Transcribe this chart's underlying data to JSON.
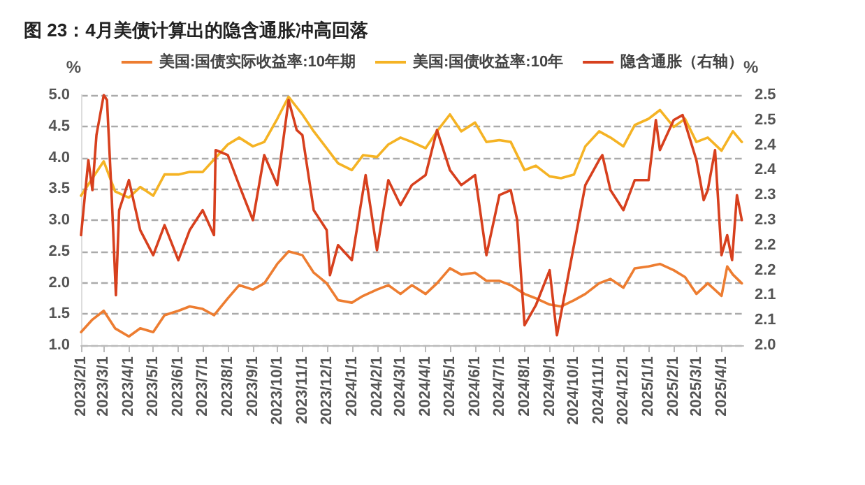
{
  "chart_data": {
    "type": "line",
    "title": "图 23：4月美债计算出的隐含通胀冲高回落",
    "ylabel": "%",
    "y2label": "%",
    "xlim": [
      "2023-02-01",
      "2025-04-28"
    ],
    "xticks": [
      {
        "value": "2023-02-01",
        "label": "2023/2/1"
      },
      {
        "value": "2023-03-01",
        "label": "2023/3/1"
      },
      {
        "value": "2023-04-01",
        "label": "2023/4/1"
      },
      {
        "value": "2023-05-01",
        "label": "2023/5/1"
      },
      {
        "value": "2023-06-01",
        "label": "2023/6/1"
      },
      {
        "value": "2023-07-01",
        "label": "2023/7/1"
      },
      {
        "value": "2023-08-01",
        "label": "2023/8/1"
      },
      {
        "value": "2023-09-01",
        "label": "2023/9/1"
      },
      {
        "value": "2023-10-01",
        "label": "2023/10/1"
      },
      {
        "value": "2023-11-01",
        "label": "2023/11/1"
      },
      {
        "value": "2023-12-01",
        "label": "2023/12/1"
      },
      {
        "value": "2024-01-01",
        "label": "2024/1/1"
      },
      {
        "value": "2024-02-01",
        "label": "2024/2/1"
      },
      {
        "value": "2024-03-01",
        "label": "2024/3/1"
      },
      {
        "value": "2024-04-01",
        "label": "2024/4/1"
      },
      {
        "value": "2024-05-01",
        "label": "2024/5/1"
      },
      {
        "value": "2024-06-01",
        "label": "2024/6/1"
      },
      {
        "value": "2024-07-01",
        "label": "2024/7/1"
      },
      {
        "value": "2024-08-01",
        "label": "2024/8/1"
      },
      {
        "value": "2024-09-01",
        "label": "2024/9/1"
      },
      {
        "value": "2024-10-01",
        "label": "2024/10/1"
      },
      {
        "value": "2024-11-01",
        "label": "2024/11/1"
      },
      {
        "value": "2024-12-01",
        "label": "2024/12/1"
      },
      {
        "value": "2025-01-01",
        "label": "2025/1/1"
      },
      {
        "value": "2025-02-01",
        "label": "2025/2/1"
      },
      {
        "value": "2025-03-01",
        "label": "2025/3/1"
      },
      {
        "value": "2025-04-01",
        "label": "2025/4/1"
      }
    ],
    "ylim": [
      1,
      5
    ],
    "yticks": [
      {
        "value": 1,
        "label": "1.0"
      },
      {
        "value": 1.5,
        "label": "1.5"
      },
      {
        "value": 2,
        "label": "2.0"
      },
      {
        "value": 2.5,
        "label": "2.5"
      },
      {
        "value": 3,
        "label": "3.0"
      },
      {
        "value": 3.5,
        "label": "3.5"
      },
      {
        "value": 4,
        "label": "4.0"
      },
      {
        "value": 4.5,
        "label": "4.5"
      },
      {
        "value": 5,
        "label": "5.0"
      }
    ],
    "y2lim": [
      2,
      2.5
    ],
    "y2ticks": [
      {
        "value": 2,
        "label": "2.0"
      },
      {
        "value": 2.05,
        "label": "2.1"
      },
      {
        "value": 2.1,
        "label": "2.1"
      },
      {
        "value": 2.15,
        "label": "2.2"
      },
      {
        "value": 2.2,
        "label": "2.2"
      },
      {
        "value": 2.25,
        "label": "2.3"
      },
      {
        "value": 2.3,
        "label": "2.3"
      },
      {
        "value": 2.35,
        "label": "2.4"
      },
      {
        "value": 2.4,
        "label": "2.4"
      },
      {
        "value": 2.45,
        "label": "2.5"
      },
      {
        "value": 2.5,
        "label": "2.5"
      }
    ],
    "grid": "y",
    "legend": "top",
    "marker": "none",
    "line_style": "solid",
    "series": [
      {
        "name": "美国:国债实际收益率:10年期",
        "color": "#ed7d31",
        "x": [
          "2023-02-01",
          "2023-02-15",
          "2023-03-01",
          "2023-03-15",
          "2023-04-01",
          "2023-04-15",
          "2023-05-01",
          "2023-05-15",
          "2023-06-01",
          "2023-06-15",
          "2023-07-01",
          "2023-07-15",
          "2023-08-01",
          "2023-08-15",
          "2023-09-01",
          "2023-09-15",
          "2023-10-01",
          "2023-10-15",
          "2023-11-01",
          "2023-11-15",
          "2023-12-01",
          "2023-12-15",
          "2024-01-01",
          "2024-01-15",
          "2024-02-01",
          "2024-02-15",
          "2024-03-01",
          "2024-03-15",
          "2024-04-01",
          "2024-04-15",
          "2024-05-01",
          "2024-05-15",
          "2024-06-01",
          "2024-06-15",
          "2024-07-01",
          "2024-07-15",
          "2024-08-01",
          "2024-08-15",
          "2024-09-01",
          "2024-09-15",
          "2024-10-01",
          "2024-10-15",
          "2024-11-01",
          "2024-11-15",
          "2024-12-01",
          "2024-12-15",
          "2025-01-01",
          "2025-01-15",
          "2025-02-01",
          "2025-02-15",
          "2025-03-01",
          "2025-03-15",
          "2025-04-01",
          "2025-04-08",
          "2025-04-15",
          "2025-04-26"
        ],
        "values": [
          1.21,
          1.41,
          1.55,
          1.27,
          1.14,
          1.27,
          1.21,
          1.48,
          1.55,
          1.62,
          1.58,
          1.48,
          1.75,
          1.96,
          1.89,
          1.99,
          2.3,
          2.5,
          2.44,
          2.16,
          1.99,
          1.72,
          1.68,
          1.79,
          1.89,
          1.96,
          1.82,
          1.96,
          1.82,
          1.99,
          2.23,
          2.13,
          2.16,
          2.03,
          2.03,
          1.96,
          1.82,
          1.75,
          1.65,
          1.62,
          1.72,
          1.82,
          1.99,
          2.06,
          1.92,
          2.23,
          2.26,
          2.3,
          2.2,
          2.09,
          1.82,
          1.99,
          1.79,
          2.26,
          2.13,
          1.99
        ]
      },
      {
        "name": "美国:国债收益率:10年",
        "color": "#f5b324",
        "x": [
          "2023-02-01",
          "2023-02-15",
          "2023-03-01",
          "2023-03-15",
          "2023-04-01",
          "2023-04-15",
          "2023-05-01",
          "2023-05-15",
          "2023-06-01",
          "2023-06-15",
          "2023-07-01",
          "2023-07-15",
          "2023-08-01",
          "2023-08-15",
          "2023-09-01",
          "2023-09-15",
          "2023-10-01",
          "2023-10-15",
          "2023-11-01",
          "2023-11-15",
          "2023-12-01",
          "2023-12-15",
          "2024-01-01",
          "2024-01-15",
          "2024-02-01",
          "2024-02-15",
          "2024-03-01",
          "2024-03-15",
          "2024-04-01",
          "2024-04-15",
          "2024-05-01",
          "2024-05-15",
          "2024-06-01",
          "2024-06-15",
          "2024-07-01",
          "2024-07-15",
          "2024-08-01",
          "2024-08-15",
          "2024-09-01",
          "2024-09-15",
          "2024-10-01",
          "2024-10-15",
          "2024-11-01",
          "2024-11-15",
          "2024-12-01",
          "2024-12-15",
          "2025-01-01",
          "2025-01-15",
          "2025-02-01",
          "2025-02-15",
          "2025-03-01",
          "2025-03-15",
          "2025-04-01",
          "2025-04-15",
          "2025-04-26"
        ],
        "values": [
          3.39,
          3.67,
          3.94,
          3.46,
          3.36,
          3.53,
          3.39,
          3.73,
          3.73,
          3.77,
          3.77,
          3.97,
          4.21,
          4.32,
          4.18,
          4.25,
          4.62,
          4.97,
          4.69,
          4.42,
          4.15,
          3.91,
          3.8,
          4.04,
          4.01,
          4.21,
          4.32,
          4.25,
          4.15,
          4.42,
          4.69,
          4.42,
          4.56,
          4.25,
          4.28,
          4.25,
          3.8,
          3.87,
          3.7,
          3.67,
          3.73,
          4.18,
          4.42,
          4.32,
          4.18,
          4.52,
          4.62,
          4.76,
          4.49,
          4.62,
          4.25,
          4.32,
          4.11,
          4.42,
          4.25
        ]
      },
      {
        "name": "隐含通胀（右轴）",
        "color": "#d7401e",
        "axis": "y2",
        "x": [
          "2023-02-01",
          "2023-02-10",
          "2023-02-15",
          "2023-02-20",
          "2023-03-01",
          "2023-03-05",
          "2023-03-11",
          "2023-03-16",
          "2023-03-20",
          "2023-04-01",
          "2023-04-15",
          "2023-05-01",
          "2023-05-08",
          "2023-05-15",
          "2023-06-01",
          "2023-06-15",
          "2023-07-01",
          "2023-07-15",
          "2023-07-17",
          "2023-08-01",
          "2023-08-15",
          "2023-09-01",
          "2023-09-15",
          "2023-10-01",
          "2023-10-15",
          "2023-10-25",
          "2023-11-01",
          "2023-11-15",
          "2023-12-01",
          "2023-12-05",
          "2023-12-15",
          "2024-01-01",
          "2024-01-18",
          "2024-02-01",
          "2024-02-15",
          "2024-03-01",
          "2024-03-15",
          "2024-04-01",
          "2024-04-15",
          "2024-05-01",
          "2024-05-15",
          "2024-06-01",
          "2024-06-15",
          "2024-07-01",
          "2024-07-15",
          "2024-07-23",
          "2024-08-01",
          "2024-08-15",
          "2024-09-01",
          "2024-09-10",
          "2024-10-01",
          "2024-10-15",
          "2024-11-01",
          "2024-11-05",
          "2024-11-15",
          "2024-12-01",
          "2024-12-15",
          "2025-01-01",
          "2025-01-10",
          "2025-01-15",
          "2025-02-01",
          "2025-02-12",
          "2025-03-01",
          "2025-03-10",
          "2025-03-15",
          "2025-03-24",
          "2025-04-01",
          "2025-04-08",
          "2025-04-14",
          "2025-04-20",
          "2025-04-26"
        ],
        "values": [
          2.22,
          2.37,
          2.31,
          2.42,
          2.5,
          2.49,
          2.29,
          2.1,
          2.27,
          2.33,
          2.23,
          2.18,
          2.21,
          2.24,
          2.17,
          2.23,
          2.27,
          2.22,
          2.39,
          2.38,
          2.32,
          2.25,
          2.38,
          2.32,
          2.49,
          2.43,
          2.42,
          2.27,
          2.23,
          2.14,
          2.2,
          2.17,
          2.34,
          2.19,
          2.33,
          2.28,
          2.32,
          2.34,
          2.43,
          2.35,
          2.32,
          2.34,
          2.18,
          2.3,
          2.31,
          2.25,
          2.04,
          2.08,
          2.15,
          2.02,
          2.2,
          2.32,
          2.37,
          2.38,
          2.31,
          2.27,
          2.33,
          2.33,
          2.45,
          2.39,
          2.45,
          2.46,
          2.37,
          2.29,
          2.31,
          2.39,
          2.18,
          2.22,
          2.17,
          2.3,
          2.25
        ]
      }
    ]
  }
}
